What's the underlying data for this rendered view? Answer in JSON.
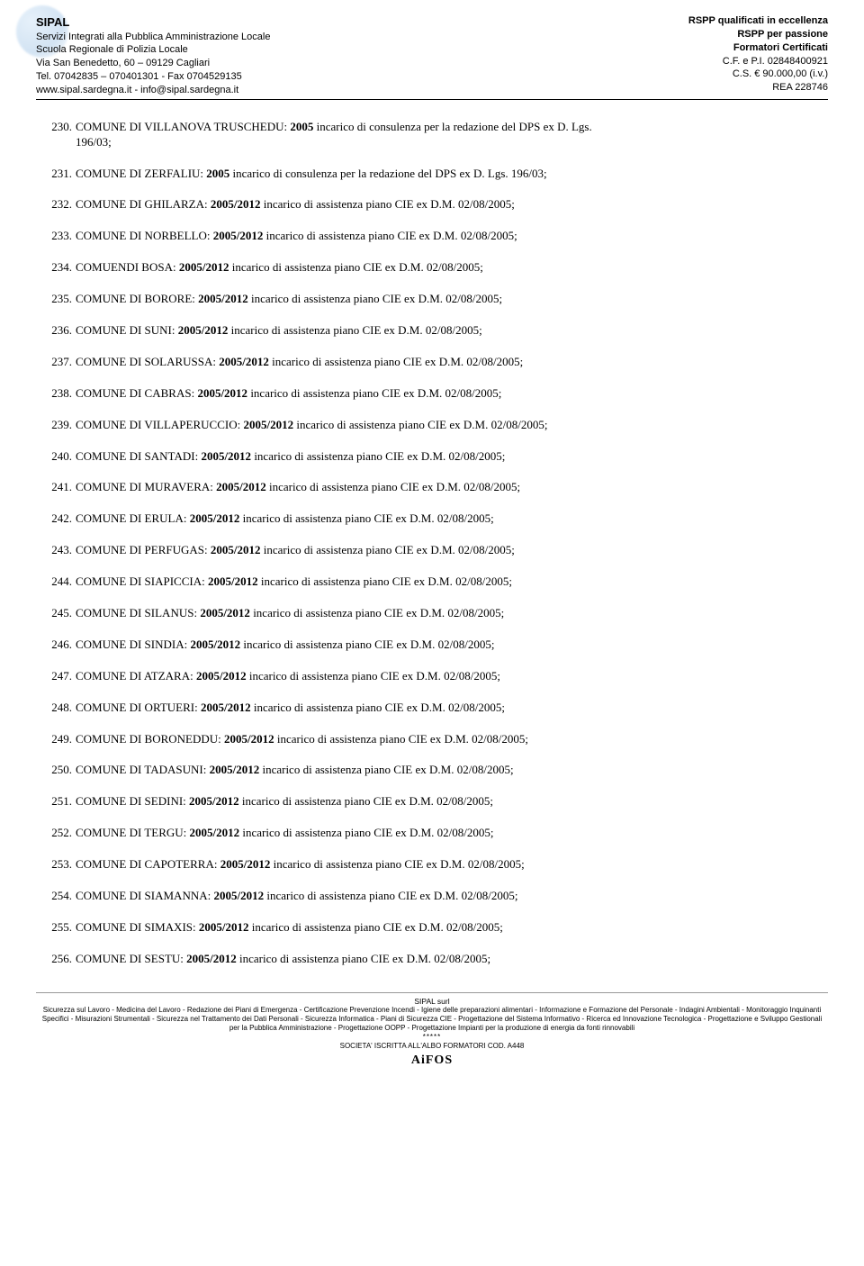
{
  "header": {
    "left": {
      "company": "SIPAL",
      "line1": "Servizi Integrati alla Pubblica Amministrazione Locale",
      "line2": "Scuola Regionale di Polizia Locale",
      "line3": "Via San Benedetto, 60 – 09129 Cagliari",
      "line4": "Tel. 07042835 – 070401301 - Fax 0704529135",
      "line5": "www.sipal.sardegna.it - info@sipal.sardegna.it"
    },
    "right": {
      "l1": "RSPP qualificati in eccellenza",
      "l2": "RSPP per passione",
      "l3": "Formatori Certificati",
      "l4": "C.F. e P.I. 02848400921",
      "l5": "C.S. € 90.000,00 (i.v.)",
      "l6": "REA 228746"
    }
  },
  "entries": [
    {
      "n": "230.",
      "pre": "COMUNE DI VILLANOVA TRUSCHEDU: ",
      "bold": "2005",
      "post": " incarico di consulenza per la redazione del DPS ex D. Lgs.",
      "sub": "196/03;"
    },
    {
      "n": "231.",
      "pre": "COMUNE DI ZERFALIU: ",
      "bold": "2005",
      "post": " incarico di consulenza per la redazione del DPS ex D. Lgs. 196/03;"
    },
    {
      "n": "232.",
      "pre": "COMUNE DI GHILARZA: ",
      "bold": "2005/2012",
      "post": " incarico di assistenza piano CIE ex D.M. 02/08/2005;"
    },
    {
      "n": "233.",
      "pre": "COMUNE DI NORBELLO: ",
      "bold": "2005/2012",
      "post": " incarico di assistenza piano CIE ex D.M. 02/08/2005;"
    },
    {
      "n": "234.",
      "pre": "COMUENDI BOSA: ",
      "bold": "2005/2012",
      "post": " incarico di assistenza piano CIE ex D.M. 02/08/2005;"
    },
    {
      "n": "235.",
      "pre": "COMUNE DI BORORE: ",
      "bold": "2005/2012",
      "post": " incarico di assistenza piano CIE ex D.M. 02/08/2005;"
    },
    {
      "n": "236.",
      "pre": "COMUNE DI SUNI: ",
      "bold": "2005/2012",
      "post": " incarico di assistenza piano CIE ex D.M. 02/08/2005;"
    },
    {
      "n": "237.",
      "pre": "COMUNE DI SOLARUSSA: ",
      "bold": "2005/2012",
      "post": " incarico di assistenza piano CIE ex D.M. 02/08/2005;"
    },
    {
      "n": "238.",
      "pre": "COMUNE DI CABRAS: ",
      "bold": "2005/2012",
      "post": " incarico di assistenza piano CIE ex D.M. 02/08/2005;"
    },
    {
      "n": "239.",
      "pre": "COMUNE DI VILLAPERUCCIO: ",
      "bold": "2005/2012",
      "post": " incarico di assistenza piano CIE ex D.M. 02/08/2005;"
    },
    {
      "n": "240.",
      "pre": "COMUNE DI SANTADI: ",
      "bold": "2005/2012",
      "post": " incarico di assistenza piano CIE ex D.M. 02/08/2005;"
    },
    {
      "n": "241.",
      "pre": "COMUNE DI MURAVERA: ",
      "bold": "2005/2012",
      "post": " incarico di assistenza piano CIE ex D.M. 02/08/2005;"
    },
    {
      "n": "242.",
      "pre": "COMUNE DI ERULA: ",
      "bold": "2005/2012",
      "post": " incarico di assistenza piano CIE ex D.M. 02/08/2005;"
    },
    {
      "n": "243.",
      "pre": "COMUNE DI PERFUGAS: ",
      "bold": "2005/2012",
      "post": " incarico di assistenza piano CIE ex D.M. 02/08/2005;"
    },
    {
      "n": "244.",
      "pre": "COMUNE DI SIAPICCIA: ",
      "bold": "2005/2012",
      "post": " incarico di assistenza piano CIE ex D.M. 02/08/2005;"
    },
    {
      "n": "245.",
      "pre": "COMUNE DI SILANUS: ",
      "bold": "2005/2012",
      "post": " incarico di assistenza piano CIE ex D.M. 02/08/2005;"
    },
    {
      "n": "246.",
      "pre": "COMUNE DI SINDIA: ",
      "bold": "2005/2012",
      "post": " incarico di assistenza piano CIE ex D.M. 02/08/2005;"
    },
    {
      "n": "247.",
      "pre": "COMUNE DI ATZARA: ",
      "bold": "2005/2012",
      "post": " incarico di assistenza piano CIE ex D.M. 02/08/2005;"
    },
    {
      "n": "248.",
      "pre": "COMUNE DI ORTUERI: ",
      "bold": "2005/2012",
      "post": " incarico di assistenza piano CIE ex D.M. 02/08/2005;"
    },
    {
      "n": "249.",
      "pre": "COMUNE DI BORONEDDU: ",
      "bold": "2005/2012",
      "post": " incarico di assistenza piano CIE ex D.M. 02/08/2005;"
    },
    {
      "n": "250.",
      "pre": "COMUNE DI TADASUNI: ",
      "bold": "2005/2012",
      "post": " incarico di assistenza piano CIE ex D.M. 02/08/2005;"
    },
    {
      "n": "251.",
      "pre": "COMUNE DI SEDINI: ",
      "bold": "2005/2012",
      "post": " incarico di assistenza piano CIE ex D.M. 02/08/2005;"
    },
    {
      "n": "252.",
      "pre": "COMUNE DI TERGU: ",
      "bold": "2005/2012",
      "post": " incarico di assistenza piano CIE ex D.M. 02/08/2005;"
    },
    {
      "n": "253.",
      "pre": "COMUNE DI CAPOTERRA: ",
      "bold": "2005/2012",
      "post": " incarico di assistenza piano CIE ex D.M. 02/08/2005;"
    },
    {
      "n": "254.",
      "pre": "COMUNE DI SIAMANNA: ",
      "bold": "2005/2012",
      "post": " incarico di assistenza piano CIE ex D.M. 02/08/2005;"
    },
    {
      "n": "255.",
      "pre": "COMUNE DI SIMAXIS: ",
      "bold": "2005/2012",
      "post": " incarico di assistenza piano CIE ex D.M. 02/08/2005;"
    },
    {
      "n": "256.",
      "pre": "COMUNE DI SESTU: ",
      "bold": "2005/2012",
      "post": " incarico di assistenza piano CIE ex D.M. 02/08/2005;"
    }
  ],
  "footer": {
    "title": "SIPAL surl",
    "body": "Sicurezza sul Lavoro - Medicina del Lavoro - Redazione dei Piani di Emergenza - Certificazione Prevenzione Incendi - Igiene delle preparazioni alimentari - Informazione e Formazione del Personale - Indagini Ambientali - Monitoraggio Inquinanti Specifici - Misurazioni Strumentali - Sicurezza nel Trattamento dei Dati Personali - Sicurezza Informatica - Piani di Sicurezza CIE - Progettazione del Sistema Informativo - Ricerca ed Innovazione Tecnologica - Progettazione e Sviluppo Gestionali per la Pubblica Amministrazione - Progettazione OOPP - Progettazione Impianti per la produzione di energia da fonti rinnovabili",
    "stars": "*****",
    "societa": "SOCIETA' ISCRITTA  ALL'ALBO FORMATORI COD. A448",
    "aifos": "AiFOS"
  }
}
